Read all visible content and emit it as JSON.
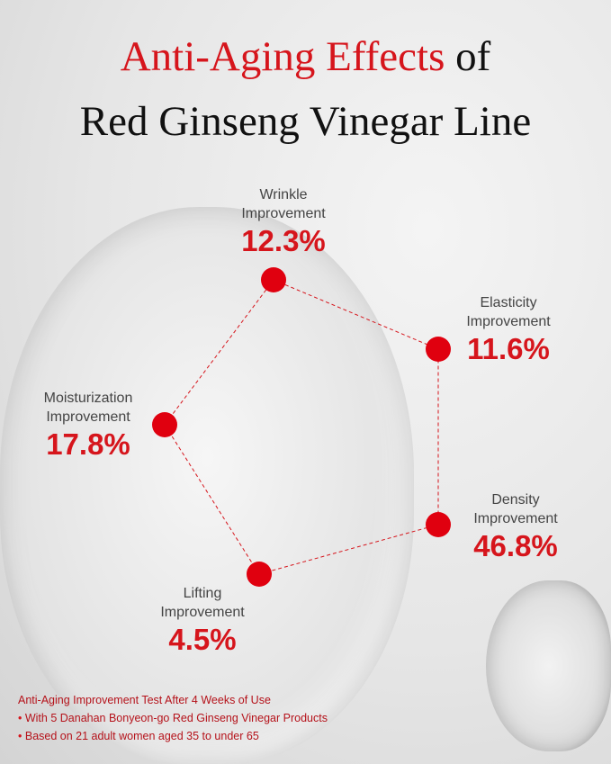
{
  "title": {
    "highlight": "Anti-Aging Effects",
    "rest": " of",
    "line2": "Red Ginseng Vinegar Line"
  },
  "metrics": [
    {
      "label1": "Wrinkle",
      "label2": "Improvement",
      "value": "12.3%"
    },
    {
      "label1": "Elasticity",
      "label2": "Improvement",
      "value": "11.6%"
    },
    {
      "label1": "Density",
      "label2": "Improvement",
      "value": "46.8%"
    },
    {
      "label1": "Lifting",
      "label2": "Improvement",
      "value": "4.5%"
    },
    {
      "label1": "Moisturization",
      "label2": "Improvement",
      "value": "17.8%"
    }
  ],
  "notes": {
    "heading": "Anti-Aging Improvement Test After 4 Weeks of Use",
    "items": [
      "With 5 Danahan Bonyeon-go Red Ginseng Vinegar Products",
      "Based on 21 adult women aged 35 to under 65"
    ]
  },
  "colors": {
    "accent": "#d6151c"
  }
}
